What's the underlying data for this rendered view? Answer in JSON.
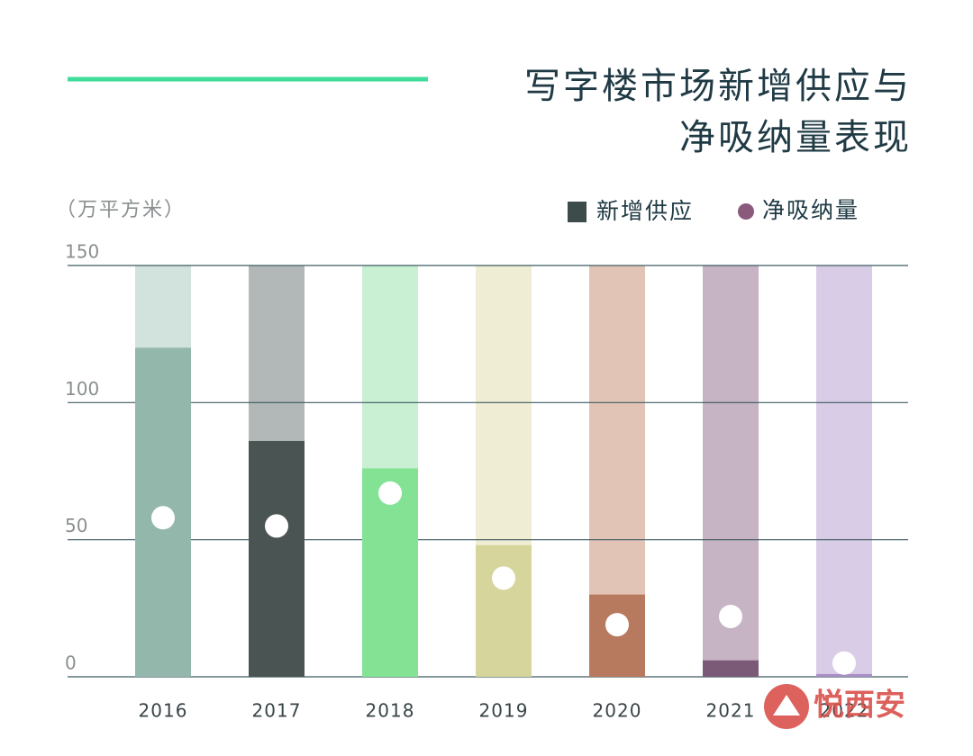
{
  "chart_data": {
    "type": "bar",
    "title_lines": [
      "写字楼市场新增供应与",
      "净吸纳量表现"
    ],
    "y_axis_label": "（万平方米）",
    "categories": [
      "2016",
      "2017",
      "2018",
      "2019",
      "2020",
      "2021",
      "2022"
    ],
    "series": [
      {
        "name": "新增供应",
        "color": "#3e4b4b",
        "values": [
          120,
          86,
          76,
          48,
          30,
          6,
          1
        ],
        "colors": [
          "#93b7aa",
          "#4a5553",
          "#84e294",
          "#d6d59c",
          "#b87a5e",
          "#7a5a77",
          "#a98fc6"
        ],
        "background_colors": [
          "#d2e2dd",
          "#b2b8b7",
          "#c9f0d3",
          "#efedd3",
          "#e2c4b7",
          "#c6b3c3",
          "#d9cce6"
        ]
      },
      {
        "name": "净吸纳量",
        "color": "#8a5a7c",
        "marker_color": "#ffffff",
        "values": [
          58,
          55,
          67,
          36,
          19,
          22,
          5
        ]
      }
    ],
    "ylim": [
      0,
      150
    ],
    "yticks": [
      0,
      50,
      100,
      150
    ],
    "grid": true,
    "watermark": "悦西安"
  }
}
